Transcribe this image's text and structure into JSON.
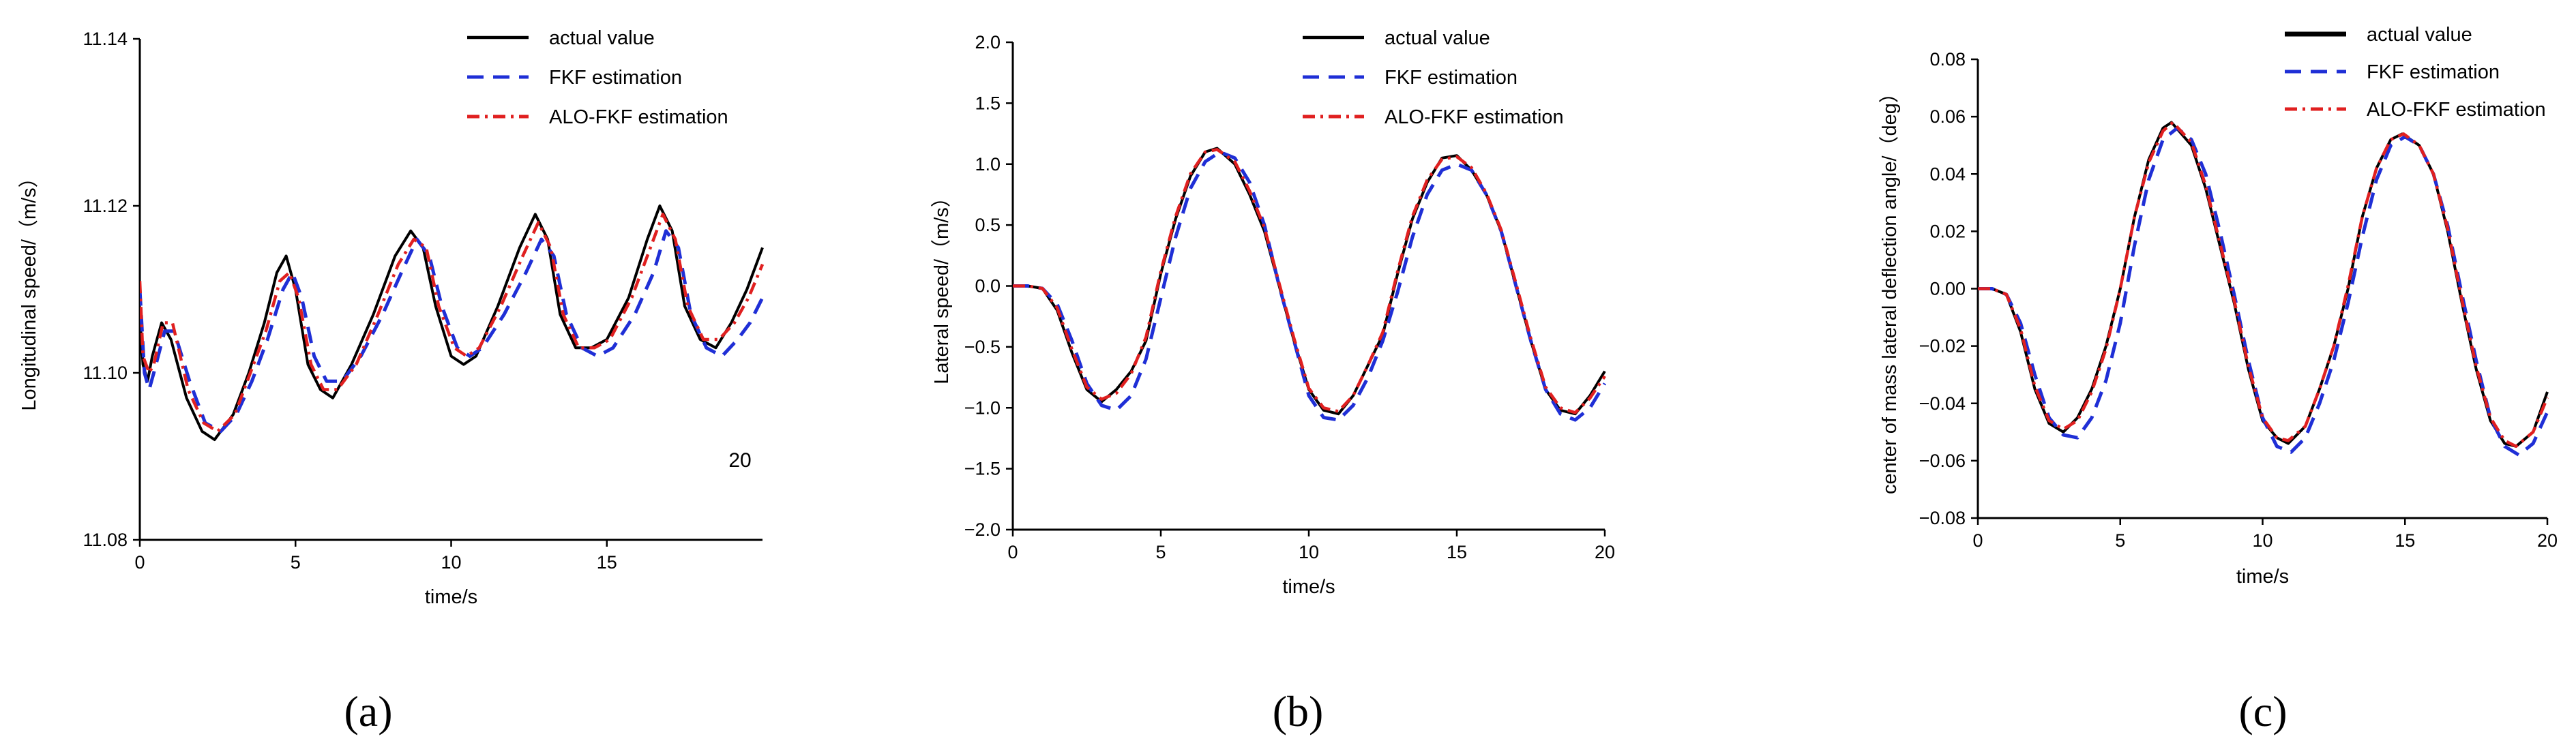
{
  "chart_data": [
    {
      "type": "line",
      "panel_label": "(a)",
      "title": "",
      "xlabel": "time/s",
      "ylabel": "Longitudinal speed/（m/s）",
      "xlim": [
        0,
        20
      ],
      "ylim": [
        11.08,
        11.14
      ],
      "xticks": [
        0,
        5,
        10,
        15
      ],
      "xtick_labels": [
        "0",
        "5",
        "10",
        "15"
      ],
      "yticks": [
        11.08,
        11.1,
        11.12,
        11.14
      ],
      "ytick_labels": [
        "11.08",
        "11.10",
        "11.12",
        "11.14"
      ],
      "annotation": "20",
      "legend_position": "top-center",
      "grid": false,
      "series": [
        {
          "name": "actual value",
          "color": "#000000",
          "style": "solid",
          "x": [
            0,
            0.1,
            0.25,
            0.4,
            0.7,
            1.0,
            1.5,
            2.0,
            2.4,
            3.0,
            3.5,
            4.0,
            4.4,
            4.7,
            5.0,
            5.4,
            5.8,
            6.2,
            6.8,
            7.5,
            8.2,
            8.7,
            9.1,
            9.5,
            10.0,
            10.4,
            10.8,
            11.5,
            12.2,
            12.7,
            13.1,
            13.5,
            14.0,
            14.5,
            15.0,
            15.7,
            16.3,
            16.7,
            17.1,
            17.5,
            18.0,
            18.5,
            19.0,
            19.5,
            20.0
          ],
          "values": [
            11.107,
            11.101,
            11.099,
            11.102,
            11.106,
            11.104,
            11.097,
            11.093,
            11.092,
            11.095,
            11.1,
            11.106,
            11.112,
            11.114,
            11.11,
            11.101,
            11.098,
            11.097,
            11.101,
            11.107,
            11.114,
            11.117,
            11.115,
            11.108,
            11.102,
            11.101,
            11.102,
            11.108,
            11.115,
            11.119,
            11.116,
            11.107,
            11.103,
            11.103,
            11.104,
            11.109,
            11.116,
            11.12,
            11.117,
            11.108,
            11.104,
            11.103,
            11.106,
            11.11,
            11.115
          ]
        },
        {
          "name": "FKF estimation",
          "color": "#1f2fd6",
          "style": "dashed",
          "x": [
            0,
            0.15,
            0.3,
            0.45,
            0.8,
            1.1,
            1.6,
            2.1,
            2.6,
            3.1,
            3.6,
            4.1,
            4.6,
            4.9,
            5.2,
            5.6,
            6.0,
            6.5,
            7.1,
            7.8,
            8.4,
            8.9,
            9.3,
            9.7,
            10.2,
            10.6,
            11.0,
            11.7,
            12.4,
            12.9,
            13.3,
            13.7,
            14.2,
            14.7,
            15.2,
            15.9,
            16.5,
            16.9,
            17.3,
            17.7,
            18.2,
            18.7,
            19.2,
            19.6,
            20.0
          ],
          "values": [
            11.11,
            11.1,
            11.098,
            11.1,
            11.105,
            11.105,
            11.099,
            11.094,
            11.093,
            11.095,
            11.099,
            11.104,
            11.11,
            11.112,
            11.109,
            11.102,
            11.099,
            11.099,
            11.102,
            11.107,
            11.112,
            11.116,
            11.114,
            11.108,
            11.103,
            11.102,
            11.103,
            11.107,
            11.112,
            11.116,
            11.114,
            11.107,
            11.103,
            11.102,
            11.103,
            11.107,
            11.112,
            11.117,
            11.115,
            11.107,
            11.103,
            11.102,
            11.104,
            11.106,
            11.109
          ]
        },
        {
          "name": "ALO-FKF estimation",
          "color": "#e02020",
          "style": "dashdot",
          "x": [
            0,
            0.1,
            0.3,
            0.45,
            0.75,
            1.05,
            1.55,
            2.05,
            2.5,
            3.05,
            3.55,
            4.05,
            4.5,
            4.8,
            5.1,
            5.5,
            5.9,
            6.35,
            6.95,
            7.65,
            8.3,
            8.8,
            9.2,
            9.6,
            10.1,
            10.5,
            10.9,
            11.6,
            12.3,
            12.8,
            13.2,
            13.6,
            14.1,
            14.6,
            15.1,
            15.8,
            16.4,
            16.8,
            17.2,
            17.6,
            18.1,
            18.6,
            19.1,
            19.55,
            20.0
          ],
          "values": [
            11.111,
            11.102,
            11.1,
            11.101,
            11.106,
            11.106,
            11.098,
            11.094,
            11.093,
            11.095,
            11.1,
            11.105,
            11.111,
            11.112,
            11.109,
            11.101,
            11.098,
            11.098,
            11.101,
            11.107,
            11.113,
            11.116,
            11.115,
            11.108,
            11.103,
            11.102,
            11.103,
            11.108,
            11.114,
            11.118,
            11.115,
            11.107,
            11.103,
            11.103,
            11.104,
            11.109,
            11.115,
            11.119,
            11.116,
            11.108,
            11.104,
            11.104,
            11.106,
            11.109,
            11.113
          ]
        }
      ]
    },
    {
      "type": "line",
      "panel_label": "(b)",
      "title": "",
      "xlabel": "time/s",
      "ylabel": "Lateral speed/（m/s）",
      "xlim": [
        0,
        20
      ],
      "ylim": [
        -2.0,
        2.0
      ],
      "xticks": [
        0,
        5,
        10,
        15,
        20
      ],
      "xtick_labels": [
        "0",
        "5",
        "10",
        "15",
        "20"
      ],
      "yticks": [
        -2.0,
        -1.5,
        -1.0,
        -0.5,
        0.0,
        0.5,
        1.0,
        1.5,
        2.0
      ],
      "ytick_labels": [
        "−2.0",
        "−1.5",
        "−1.0",
        "−0.5",
        "0.0",
        "0.5",
        "1.0",
        "1.5",
        "2.0"
      ],
      "legend_position": "top-center",
      "grid": false,
      "series": [
        {
          "name": "actual value",
          "color": "#000000",
          "style": "solid",
          "x": [
            0,
            0.5,
            1.0,
            1.5,
            2.0,
            2.5,
            3.0,
            3.5,
            4.0,
            4.5,
            5.0,
            5.5,
            6.0,
            6.5,
            6.9,
            7.5,
            8.0,
            8.5,
            9.0,
            9.5,
            10.0,
            10.5,
            11.0,
            11.5,
            12.0,
            12.5,
            13.0,
            13.5,
            14.0,
            14.5,
            15.0,
            15.5,
            16.0,
            16.5,
            17.0,
            17.5,
            18.0,
            18.5,
            19.0,
            19.5,
            20.0
          ],
          "values": [
            0.0,
            0.0,
            -0.02,
            -0.2,
            -0.55,
            -0.85,
            -0.95,
            -0.85,
            -0.7,
            -0.45,
            0.1,
            0.55,
            0.9,
            1.1,
            1.13,
            1.0,
            0.75,
            0.45,
            0.0,
            -0.45,
            -0.85,
            -1.02,
            -1.05,
            -0.9,
            -0.65,
            -0.4,
            0.1,
            0.55,
            0.85,
            1.05,
            1.07,
            0.95,
            0.75,
            0.45,
            0.0,
            -0.45,
            -0.85,
            -1.02,
            -1.05,
            -0.9,
            -0.7
          ]
        },
        {
          "name": "FKF estimation",
          "color": "#1f2fd6",
          "style": "dashed",
          "x": [
            0,
            0.5,
            1.0,
            1.5,
            2.0,
            2.5,
            3.0,
            3.5,
            4.0,
            4.5,
            5.0,
            5.5,
            6.0,
            6.5,
            7.0,
            7.5,
            8.0,
            8.5,
            9.0,
            9.5,
            10.0,
            10.5,
            11.0,
            11.5,
            12.0,
            12.5,
            13.0,
            13.5,
            14.0,
            14.5,
            15.0,
            15.5,
            16.0,
            16.5,
            17.0,
            17.5,
            18.0,
            18.5,
            19.0,
            19.5,
            20.0
          ],
          "values": [
            0.0,
            0.0,
            -0.02,
            -0.15,
            -0.45,
            -0.8,
            -0.98,
            -1.02,
            -0.9,
            -0.6,
            -0.1,
            0.4,
            0.8,
            1.02,
            1.1,
            1.05,
            0.85,
            0.5,
            0.0,
            -0.45,
            -0.9,
            -1.08,
            -1.1,
            -0.98,
            -0.75,
            -0.45,
            -0.05,
            0.4,
            0.75,
            0.95,
            1.0,
            0.95,
            0.75,
            0.45,
            0.0,
            -0.45,
            -0.85,
            -1.05,
            -1.1,
            -1.0,
            -0.8
          ]
        },
        {
          "name": "ALO-FKF estimation",
          "color": "#e02020",
          "style": "dashdot",
          "x": [
            0,
            0.5,
            1.0,
            1.5,
            2.0,
            2.5,
            3.0,
            3.5,
            4.0,
            4.5,
            5.0,
            5.5,
            6.0,
            6.5,
            6.9,
            7.5,
            8.0,
            8.5,
            9.0,
            9.5,
            10.0,
            10.5,
            11.0,
            11.5,
            12.0,
            12.5,
            13.0,
            13.5,
            14.0,
            14.5,
            15.0,
            15.5,
            16.0,
            16.5,
            17.0,
            17.5,
            18.0,
            18.5,
            19.0,
            19.5,
            20.0
          ],
          "values": [
            0.0,
            0.0,
            -0.02,
            -0.18,
            -0.52,
            -0.83,
            -0.93,
            -0.88,
            -0.72,
            -0.42,
            0.12,
            0.57,
            0.92,
            1.1,
            1.12,
            1.02,
            0.78,
            0.48,
            0.02,
            -0.43,
            -0.84,
            -1.0,
            -1.03,
            -0.9,
            -0.65,
            -0.38,
            0.12,
            0.57,
            0.87,
            1.04,
            1.06,
            0.97,
            0.76,
            0.46,
            0.02,
            -0.43,
            -0.83,
            -1.0,
            -1.04,
            -0.92,
            -0.74
          ]
        }
      ]
    },
    {
      "type": "line",
      "panel_label": "(c)",
      "title": "",
      "xlabel": "time/s",
      "ylabel": "center of mass lateral deflection angle/（deg）",
      "xlim": [
        0,
        20
      ],
      "ylim": [
        -0.08,
        0.08
      ],
      "xticks": [
        0,
        5,
        10,
        15,
        20
      ],
      "xtick_labels": [
        "0",
        "5",
        "10",
        "15",
        "20"
      ],
      "yticks": [
        -0.08,
        -0.06,
        -0.04,
        -0.02,
        0.0,
        0.02,
        0.04,
        0.06,
        0.08
      ],
      "ytick_labels": [
        "−0.08",
        "−0.06",
        "−0.04",
        "−0.02",
        "0.00",
        "0.02",
        "0.04",
        "0.06",
        "0.08"
      ],
      "legend_position": "top-center",
      "grid": false,
      "series": [
        {
          "name": "actual value",
          "color": "#000000",
          "style": "solid",
          "x": [
            0,
            0.5,
            1.0,
            1.5,
            2.0,
            2.5,
            3.0,
            3.5,
            4.0,
            4.5,
            5.0,
            5.5,
            6.0,
            6.5,
            6.8,
            7.5,
            8.0,
            8.5,
            9.0,
            9.5,
            10.0,
            10.5,
            10.9,
            11.5,
            12.0,
            12.5,
            13.0,
            13.5,
            14.0,
            14.5,
            14.9,
            15.5,
            16.0,
            16.5,
            17.0,
            17.5,
            18.0,
            18.5,
            18.9,
            19.5,
            20.0
          ],
          "values": [
            0.0,
            0.0,
            -0.002,
            -0.015,
            -0.035,
            -0.047,
            -0.05,
            -0.045,
            -0.035,
            -0.02,
            0.0,
            0.025,
            0.045,
            0.056,
            0.058,
            0.05,
            0.035,
            0.015,
            -0.005,
            -0.028,
            -0.046,
            -0.052,
            -0.054,
            -0.048,
            -0.035,
            -0.02,
            0.0,
            0.025,
            0.042,
            0.052,
            0.054,
            0.05,
            0.04,
            0.02,
            -0.005,
            -0.028,
            -0.046,
            -0.054,
            -0.055,
            -0.05,
            -0.036
          ]
        },
        {
          "name": "FKF estimation",
          "color": "#1f2fd6",
          "style": "dashed",
          "x": [
            0,
            0.5,
            1.0,
            1.5,
            2.0,
            2.5,
            3.0,
            3.5,
            4.0,
            4.5,
            5.0,
            5.5,
            6.0,
            6.5,
            7.0,
            7.5,
            8.0,
            8.5,
            9.0,
            9.5,
            10.0,
            10.5,
            11.0,
            11.5,
            12.0,
            12.5,
            13.0,
            13.5,
            14.0,
            14.5,
            15.0,
            15.5,
            16.0,
            16.5,
            17.0,
            17.5,
            18.0,
            18.5,
            19.0,
            19.5,
            20.0
          ],
          "values": [
            0.0,
            0.0,
            -0.002,
            -0.012,
            -0.03,
            -0.045,
            -0.051,
            -0.052,
            -0.045,
            -0.032,
            -0.012,
            0.015,
            0.038,
            0.052,
            0.056,
            0.052,
            0.04,
            0.02,
            -0.002,
            -0.025,
            -0.045,
            -0.055,
            -0.057,
            -0.052,
            -0.04,
            -0.025,
            -0.005,
            0.018,
            0.038,
            0.05,
            0.053,
            0.05,
            0.04,
            0.022,
            -0.002,
            -0.025,
            -0.045,
            -0.055,
            -0.058,
            -0.054,
            -0.043
          ]
        },
        {
          "name": "ALO-FKF estimation",
          "color": "#e02020",
          "style": "dashdot",
          "x": [
            0,
            0.5,
            1.0,
            1.5,
            2.0,
            2.5,
            3.0,
            3.5,
            4.0,
            4.5,
            5.0,
            5.5,
            6.0,
            6.5,
            6.85,
            7.5,
            8.0,
            8.5,
            9.0,
            9.5,
            10.0,
            10.5,
            10.9,
            11.5,
            12.0,
            12.5,
            13.0,
            13.5,
            14.0,
            14.5,
            14.95,
            15.5,
            16.0,
            16.5,
            17.0,
            17.5,
            18.0,
            18.5,
            18.9,
            19.5,
            20.0
          ],
          "values": [
            0.0,
            0.0,
            -0.002,
            -0.014,
            -0.034,
            -0.046,
            -0.049,
            -0.046,
            -0.036,
            -0.021,
            0.0,
            0.025,
            0.044,
            0.055,
            0.058,
            0.051,
            0.036,
            0.016,
            -0.004,
            -0.027,
            -0.045,
            -0.052,
            -0.053,
            -0.048,
            -0.035,
            -0.02,
            0.001,
            0.025,
            0.042,
            0.052,
            0.054,
            0.05,
            0.04,
            0.021,
            -0.004,
            -0.027,
            -0.045,
            -0.053,
            -0.055,
            -0.05,
            -0.038
          ]
        }
      ]
    }
  ]
}
